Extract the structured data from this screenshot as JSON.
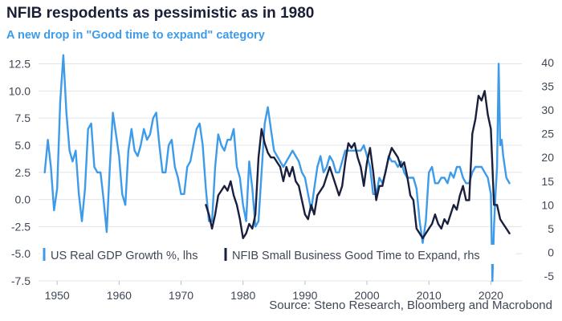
{
  "chart_data": {
    "type": "line",
    "title": "NFIB respodents as pessimistic as in 1980",
    "subtitle": "A new drop in \"Good time to expand\" category",
    "source": "Source: Steno Research, Bloomberg and Macrobond",
    "x_ticks": [
      "1950",
      "1960",
      "1970",
      "1980",
      "1990",
      "2000",
      "2010",
      "2020"
    ],
    "xlim": [
      1947,
      2025
    ],
    "y_left": {
      "lim": [
        -7.5,
        13.5
      ],
      "ticks": [
        "-7.5",
        "-5.0",
        "-2.5",
        "0.0",
        "2.5",
        "5.0",
        "7.5",
        "10.0",
        "12.5"
      ]
    },
    "y_right": {
      "lim": [
        -6,
        42
      ],
      "ticks": [
        "-5",
        "0",
        "5",
        "10",
        "15",
        "20",
        "25",
        "30",
        "35",
        "40"
      ]
    },
    "grid": true,
    "legend_position": "bottom-left",
    "colors": {
      "gdp": "#3d9be9",
      "nfib": "#1a1f3d",
      "title": "#1a1f36",
      "subtitle": "#3d9be9"
    },
    "series": [
      {
        "name": "US Real GDP Growth %, lhs",
        "axis": "left",
        "x": [
          1948.0,
          1948.5,
          1949.0,
          1949.5,
          1950.0,
          1950.5,
          1951.0,
          1951.5,
          1952.0,
          1952.5,
          1953.0,
          1953.5,
          1954.0,
          1954.5,
          1955.0,
          1955.5,
          1956.0,
          1956.5,
          1957.0,
          1957.5,
          1958.0,
          1958.5,
          1959.0,
          1959.5,
          1960.0,
          1960.5,
          1961.0,
          1961.5,
          1962.0,
          1962.5,
          1963.0,
          1963.5,
          1964.0,
          1964.5,
          1965.0,
          1965.5,
          1966.0,
          1966.5,
          1967.0,
          1967.5,
          1968.0,
          1968.5,
          1969.0,
          1969.5,
          1970.0,
          1970.5,
          1971.0,
          1971.5,
          1972.0,
          1972.5,
          1973.0,
          1973.5,
          1974.0,
          1974.5,
          1975.0,
          1975.5,
          1976.0,
          1976.5,
          1977.0,
          1977.5,
          1978.0,
          1978.5,
          1979.0,
          1979.5,
          1980.0,
          1980.5,
          1981.0,
          1981.5,
          1982.0,
          1982.5,
          1983.0,
          1983.5,
          1984.0,
          1984.5,
          1985.0,
          1985.5,
          1986.0,
          1986.5,
          1987.0,
          1987.5,
          1988.0,
          1988.5,
          1989.0,
          1989.5,
          1990.0,
          1990.5,
          1991.0,
          1991.5,
          1992.0,
          1992.5,
          1993.0,
          1993.5,
          1994.0,
          1994.5,
          1995.0,
          1995.5,
          1996.0,
          1996.5,
          1997.0,
          1997.5,
          1998.0,
          1998.5,
          1999.0,
          1999.5,
          2000.0,
          2000.5,
          2001.0,
          2001.5,
          2002.0,
          2002.5,
          2003.0,
          2003.5,
          2004.0,
          2004.5,
          2005.0,
          2005.5,
          2006.0,
          2006.5,
          2007.0,
          2007.5,
          2008.0,
          2008.5,
          2009.0,
          2009.5,
          2010.0,
          2010.5,
          2011.0,
          2011.5,
          2012.0,
          2012.5,
          2013.0,
          2013.5,
          2014.0,
          2014.5,
          2015.0,
          2015.5,
          2016.0,
          2016.5,
          2017.0,
          2017.5,
          2018.0,
          2018.5,
          2019.0,
          2019.5,
          2020.0,
          2020.25,
          2020.5,
          2020.75,
          2021.0,
          2021.25,
          2021.5,
          2021.75,
          2022.0,
          2022.5,
          2023.0
        ],
        "values": [
          2.5,
          5.5,
          3.0,
          -1.0,
          1.0,
          9.0,
          13.3,
          8.0,
          4.5,
          3.5,
          4.5,
          0.5,
          -2.0,
          1.0,
          6.5,
          7.0,
          3.0,
          2.5,
          2.5,
          0.0,
          -3.0,
          3.0,
          8.0,
          6.0,
          4.0,
          0.5,
          -0.5,
          4.5,
          6.5,
          4.5,
          4.0,
          5.0,
          6.5,
          5.5,
          6.0,
          7.5,
          8.0,
          5.0,
          2.5,
          2.5,
          5.0,
          5.5,
          3.0,
          2.0,
          0.5,
          0.5,
          3.0,
          3.5,
          5.0,
          6.5,
          7.0,
          5.0,
          1.0,
          -2.0,
          -2.0,
          3.0,
          6.0,
          5.0,
          4.5,
          5.5,
          5.5,
          6.5,
          3.0,
          2.0,
          -0.5,
          -2.0,
          3.5,
          1.0,
          -2.5,
          -2.0,
          2.5,
          7.0,
          8.5,
          6.5,
          4.5,
          4.0,
          3.5,
          3.0,
          3.5,
          4.0,
          4.5,
          4.0,
          3.5,
          2.5,
          2.0,
          0.5,
          -1.0,
          1.0,
          3.0,
          4.0,
          2.5,
          3.0,
          4.0,
          3.5,
          2.5,
          2.5,
          3.5,
          4.5,
          4.5,
          4.5,
          4.5,
          4.5,
          4.5,
          5.0,
          4.0,
          3.0,
          0.5,
          0.5,
          2.0,
          1.5,
          2.5,
          4.0,
          3.5,
          3.5,
          3.0,
          3.5,
          2.5,
          2.0,
          2.0,
          2.0,
          1.0,
          -2.0,
          -4.0,
          -2.0,
          2.5,
          3.0,
          1.5,
          1.5,
          2.0,
          2.0,
          1.5,
          2.5,
          2.0,
          3.0,
          3.0,
          2.0,
          1.5,
          1.5,
          2.5,
          3.0,
          3.0,
          3.0,
          2.5,
          2.0,
          0.5,
          -7.5,
          -2.5,
          0.5,
          3.0,
          12.5,
          5.0,
          5.5,
          4.0,
          2.0,
          1.5
        ]
      },
      {
        "name": "NFIB Small Business Good Time to Expand, rhs",
        "axis": "right",
        "x": [
          1974.0,
          1974.5,
          1975.0,
          1975.5,
          1976.0,
          1976.5,
          1977.0,
          1977.5,
          1978.0,
          1978.5,
          1979.0,
          1979.5,
          1980.0,
          1980.5,
          1981.0,
          1981.5,
          1982.0,
          1982.5,
          1983.0,
          1983.5,
          1984.0,
          1984.5,
          1985.0,
          1985.5,
          1986.0,
          1986.5,
          1987.0,
          1987.5,
          1988.0,
          1988.5,
          1989.0,
          1989.5,
          1990.0,
          1990.5,
          1991.0,
          1991.5,
          1992.0,
          1992.5,
          1993.0,
          1993.5,
          1994.0,
          1994.5,
          1995.0,
          1995.5,
          1996.0,
          1996.5,
          1997.0,
          1997.5,
          1998.0,
          1998.5,
          1999.0,
          1999.5,
          2000.0,
          2000.5,
          2001.0,
          2001.5,
          2002.0,
          2002.5,
          2003.0,
          2003.5,
          2004.0,
          2004.5,
          2005.0,
          2005.5,
          2006.0,
          2006.5,
          2007.0,
          2007.5,
          2008.0,
          2008.5,
          2009.0,
          2009.5,
          2010.0,
          2010.5,
          2011.0,
          2011.5,
          2012.0,
          2012.5,
          2013.0,
          2013.5,
          2014.0,
          2014.5,
          2015.0,
          2015.5,
          2016.0,
          2016.5,
          2017.0,
          2017.5,
          2018.0,
          2018.5,
          2019.0,
          2019.5,
          2020.0,
          2020.5,
          2021.0,
          2021.5,
          2022.0,
          2022.5,
          2023.0
        ],
        "values": [
          10,
          8,
          5,
          8,
          12,
          13,
          14,
          13,
          15,
          12,
          10,
          7,
          3,
          4,
          6,
          5,
          8,
          20,
          26,
          23,
          21,
          20,
          20,
          19,
          18,
          15,
          18,
          16,
          18,
          15,
          14,
          11,
          8,
          7,
          10,
          8,
          12,
          13,
          14,
          16,
          18,
          16,
          14,
          12,
          14,
          19,
          23,
          22,
          23,
          20,
          18,
          14,
          19,
          22,
          17,
          11,
          14,
          14,
          17,
          20,
          22,
          21,
          20,
          18,
          19,
          16,
          12,
          11,
          5,
          4,
          3,
          4,
          5,
          6,
          8,
          6,
          5,
          7,
          6,
          8,
          10,
          9,
          12,
          14,
          11,
          11,
          25,
          28,
          33,
          32,
          34,
          29,
          26,
          10,
          10,
          7,
          6,
          5,
          4
        ]
      }
    ]
  }
}
